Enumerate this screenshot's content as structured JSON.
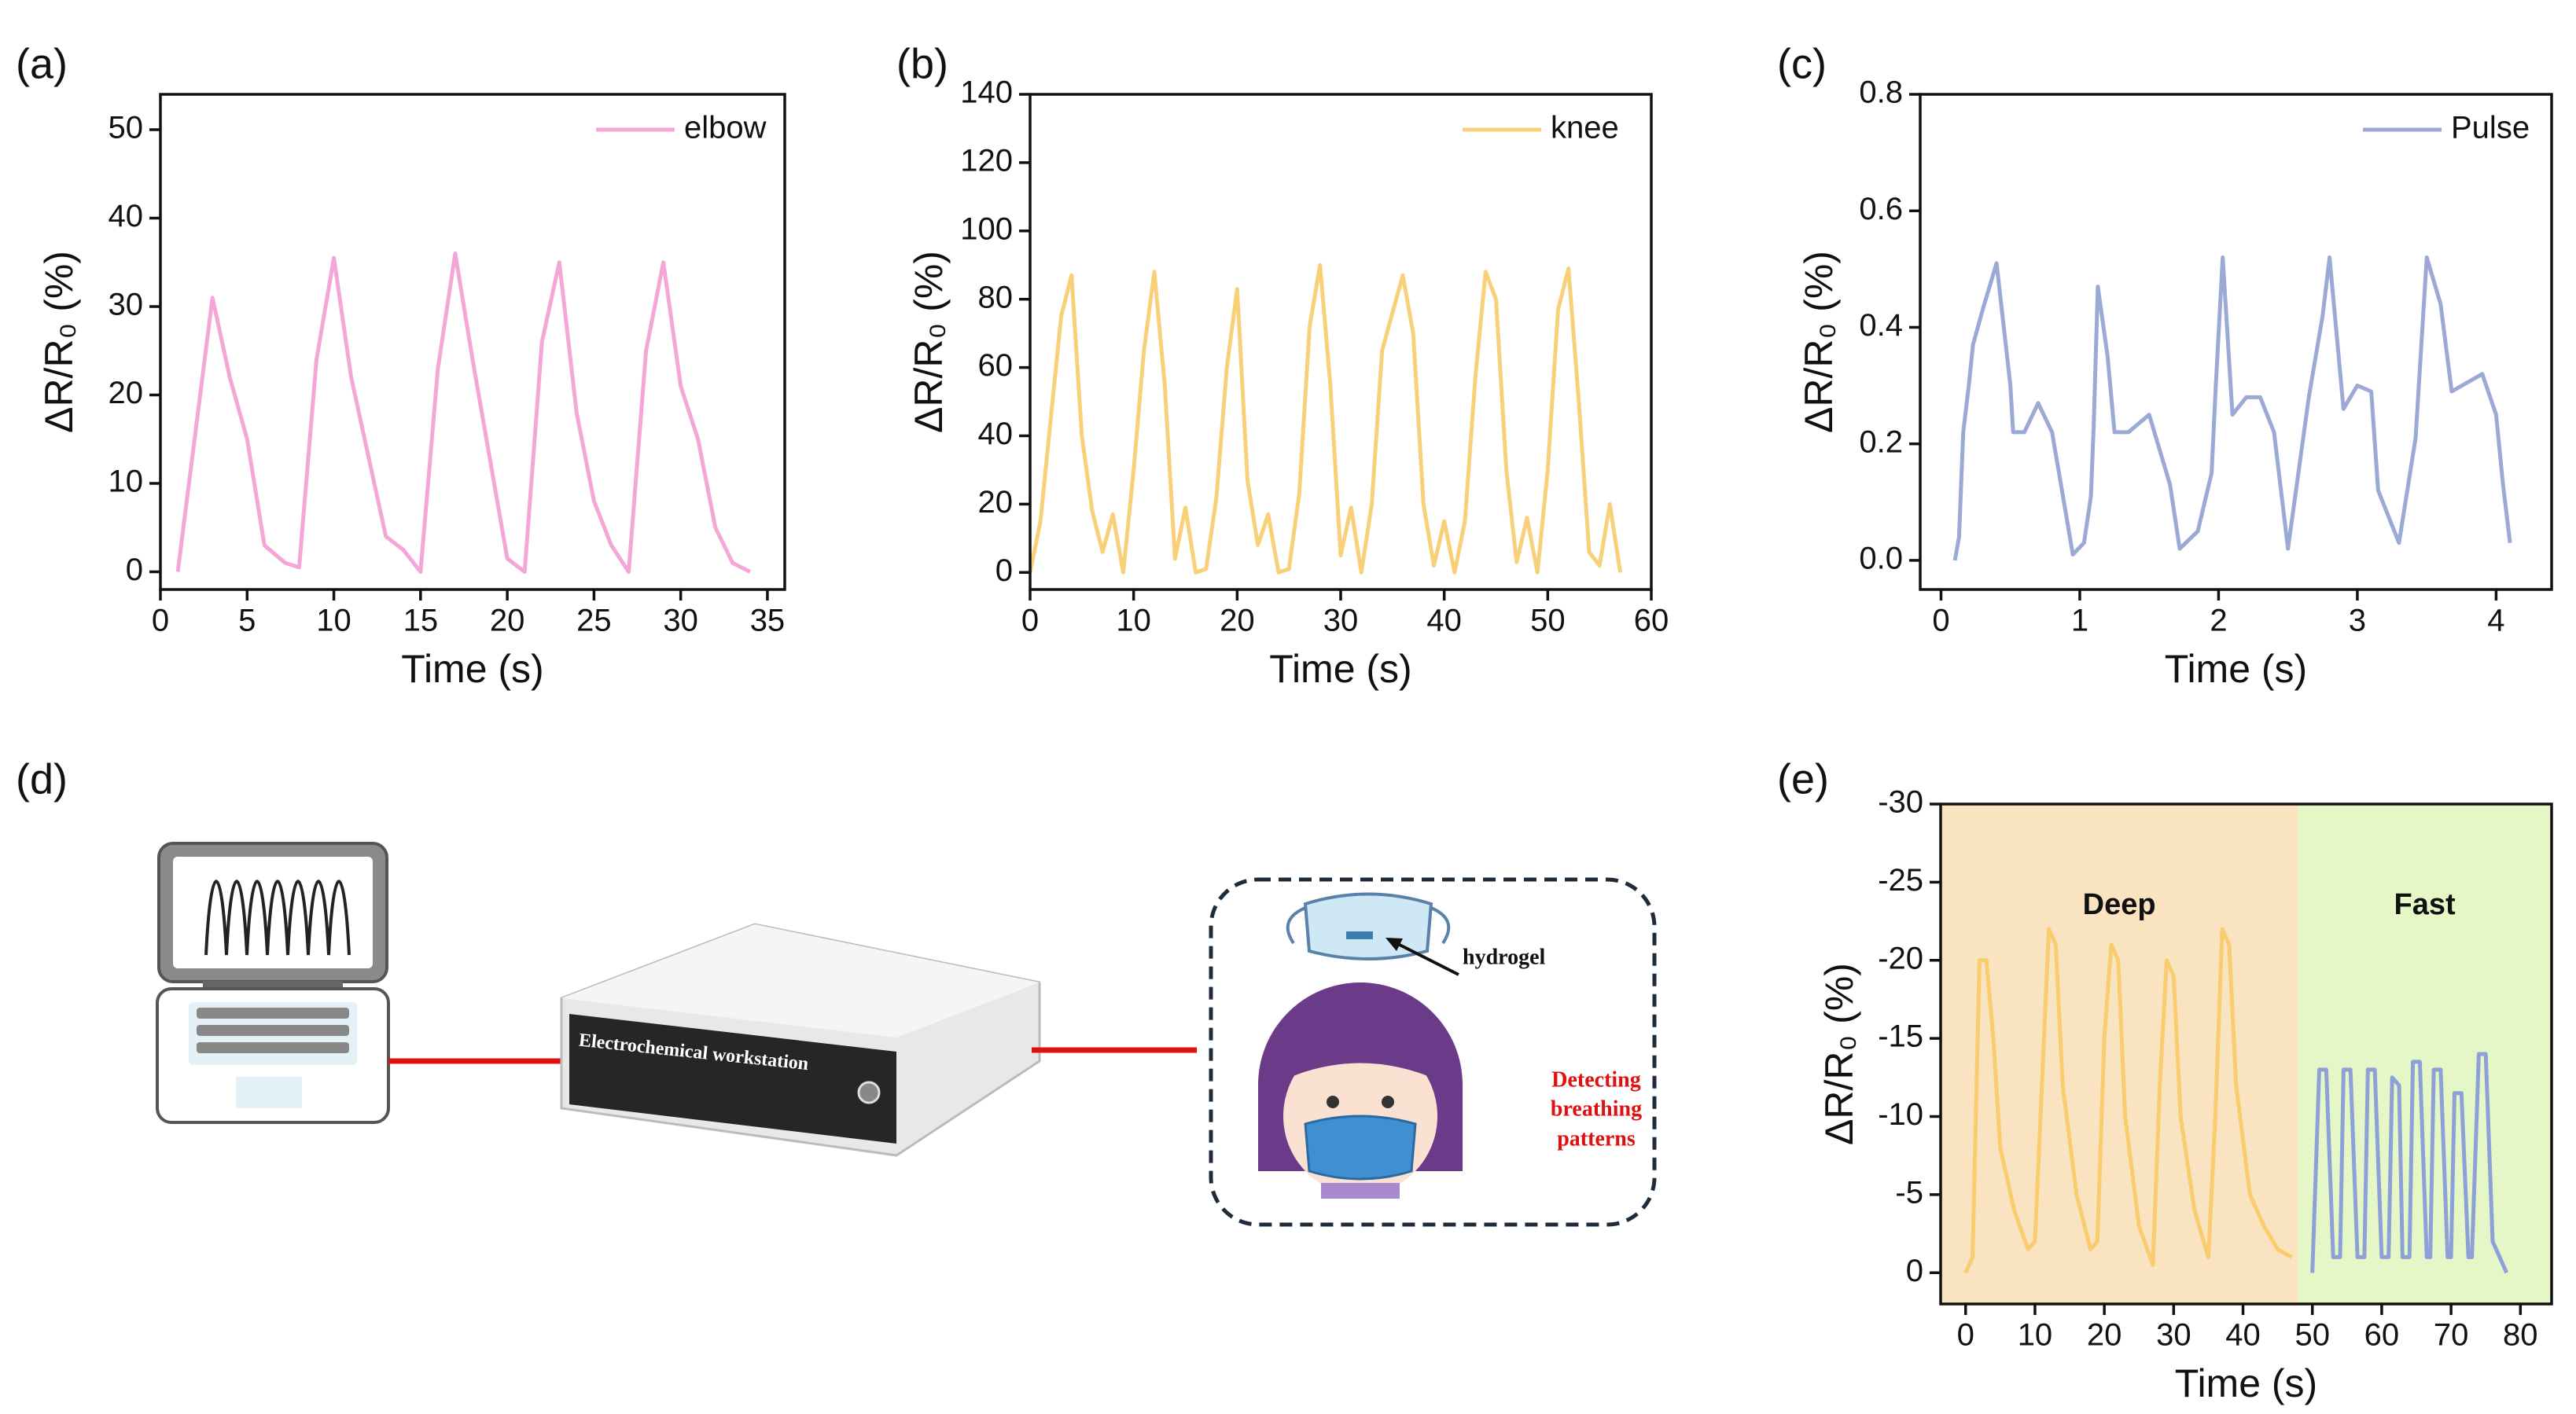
{
  "chart_data": [
    {
      "type": "line",
      "panel": "(a)",
      "xlabel": "Time (s)",
      "ylabel": "ΔR/R₀ (%)",
      "x": [
        1,
        3,
        4,
        5,
        6,
        7.2,
        8,
        9,
        10,
        11,
        13,
        14,
        15,
        16,
        17,
        18,
        20,
        21,
        22,
        23,
        24,
        25,
        26,
        27,
        28,
        29,
        30,
        31,
        32,
        33,
        34
      ],
      "series": [
        {
          "name": "elbow",
          "color": "#f4a6d7",
          "values": [
            0,
            31,
            22,
            15,
            3,
            1,
            0.5,
            24,
            35.5,
            22,
            4,
            2.5,
            0,
            23,
            36,
            24,
            1.5,
            0,
            26,
            35,
            18,
            8,
            3,
            0,
            25,
            35,
            21,
            15,
            5,
            1,
            0
          ]
        }
      ],
      "xlim": [
        0,
        36
      ],
      "ylim": [
        -2,
        54
      ],
      "xticks": [
        0,
        5,
        10,
        15,
        20,
        25,
        30,
        35
      ],
      "yticks": [
        0,
        10,
        20,
        30,
        40,
        50
      ],
      "legend": "upper right"
    },
    {
      "type": "line",
      "panel": "(b)",
      "xlabel": "Time (s)",
      "ylabel": "ΔR/R₀ (%)",
      "x": [
        0,
        1,
        2,
        3,
        4,
        5,
        6,
        7,
        8,
        9,
        10,
        11,
        12,
        13,
        14,
        15,
        16,
        17,
        18,
        19,
        20,
        21,
        22,
        23,
        24,
        25,
        26,
        27,
        28,
        29,
        30,
        31,
        32,
        33,
        34,
        35,
        36,
        37,
        38,
        39,
        40,
        41,
        42,
        43,
        44,
        45,
        46,
        47,
        48,
        49,
        50,
        51,
        52,
        53,
        54,
        55,
        56,
        57
      ],
      "series": [
        {
          "name": "knee",
          "color": "#f9d07a",
          "values": [
            0,
            15,
            45,
            75,
            87,
            40,
            18,
            6,
            17,
            0,
            30,
            65,
            88,
            55,
            4,
            19,
            0,
            1,
            22,
            60,
            83,
            27,
            8,
            17,
            0,
            1,
            23,
            72,
            90,
            55,
            5,
            19,
            0,
            20,
            65,
            76,
            87,
            70,
            20,
            2,
            15,
            0,
            15,
            57,
            88,
            80,
            30,
            3,
            16,
            0,
            30,
            77,
            89,
            50,
            6,
            2,
            20,
            0
          ]
        }
      ],
      "xlim": [
        0,
        60
      ],
      "ylim": [
        -5,
        140
      ],
      "xticks": [
        0,
        10,
        20,
        30,
        40,
        50,
        60
      ],
      "yticks": [
        0,
        20,
        40,
        60,
        80,
        100,
        120,
        140
      ],
      "legend": "upper right"
    },
    {
      "type": "line",
      "panel": "(c)",
      "xlabel": "Time (s)",
      "ylabel": "ΔR/R₀ (%)",
      "x": [
        0.1,
        0.13,
        0.16,
        0.2,
        0.23,
        0.3,
        0.4,
        0.5,
        0.52,
        0.6,
        0.7,
        0.8,
        0.9,
        0.95,
        1.03,
        1.08,
        1.1,
        1.13,
        1.2,
        1.25,
        1.35,
        1.5,
        1.65,
        1.72,
        1.85,
        1.95,
        1.98,
        2.03,
        2.1,
        2.2,
        2.3,
        2.4,
        2.5,
        2.65,
        2.75,
        2.8,
        2.9,
        3.0,
        3.1,
        3.15,
        3.3,
        3.42,
        3.5,
        3.6,
        3.68,
        3.9,
        4.0,
        4.05,
        4.1
      ],
      "series": [
        {
          "name": "Pulse",
          "color": "#9aa9d5",
          "values": [
            0,
            0.04,
            0.22,
            0.3,
            0.37,
            0.43,
            0.51,
            0.3,
            0.22,
            0.22,
            0.27,
            0.22,
            0.08,
            0.01,
            0.03,
            0.11,
            0.23,
            0.47,
            0.35,
            0.22,
            0.22,
            0.25,
            0.13,
            0.02,
            0.05,
            0.15,
            0.3,
            0.52,
            0.25,
            0.28,
            0.28,
            0.22,
            0.02,
            0.28,
            0.42,
            0.52,
            0.26,
            0.3,
            0.29,
            0.12,
            0.03,
            0.21,
            0.52,
            0.44,
            0.29,
            0.32,
            0.25,
            0.13,
            0.03
          ]
        }
      ],
      "xlim": [
        -0.15,
        4.4
      ],
      "ylim": [
        -0.05,
        0.8
      ],
      "xticks": [
        0,
        1,
        2,
        3,
        4
      ],
      "yticks": [
        {
          "value": 0,
          "label": "0.0"
        },
        0.2,
        0.4,
        0.6,
        0.8
      ],
      "legend": "upper right"
    },
    {
      "type": "line",
      "panel": "(e)",
      "xlabel": "Time (s)",
      "ylabel": "ΔR/R₀ (%)",
      "series": [
        {
          "name": "Deep",
          "color": "#f9cc6e",
          "shade": [
            -3.6,
            47.9
          ],
          "shade_color": "#f9e3c0",
          "x": [
            0,
            1,
            2,
            3,
            4,
            5,
            7,
            9,
            10,
            11,
            12,
            13,
            14,
            16,
            18,
            19,
            20,
            21,
            22,
            23,
            25,
            27,
            28,
            29,
            30,
            31,
            33,
            35,
            36,
            37,
            38,
            39,
            41,
            43,
            45,
            47
          ],
          "values": [
            0,
            -1,
            -20,
            -20,
            -15,
            -8,
            -4,
            -1.5,
            -2,
            -12,
            -22,
            -21,
            -12,
            -5,
            -1.5,
            -2,
            -15,
            -21,
            -20,
            -10,
            -3,
            -0.5,
            -12,
            -20,
            -19,
            -10,
            -4,
            -1,
            -10,
            -22,
            -21,
            -12,
            -5,
            -3,
            -1.5,
            -1
          ]
        },
        {
          "name": "Fast",
          "color": "#8ea0d8",
          "shade": [
            47.9,
            84.5
          ],
          "shade_color": "#e5f7c6",
          "x": [
            50,
            51,
            52,
            53,
            54,
            54.5,
            55.5,
            56.5,
            57.5,
            58,
            59,
            60,
            61,
            61.5,
            62.5,
            63,
            64,
            64.5,
            65.5,
            66.5,
            67,
            67.5,
            68.5,
            69.5,
            70,
            70.5,
            71.5,
            72.5,
            73,
            74,
            75,
            76,
            77,
            78
          ],
          "values": [
            0,
            -13,
            -13,
            -1,
            -1,
            -13,
            -13,
            -1,
            -1,
            -13,
            -13,
            -1,
            -1,
            -12.5,
            -12,
            -1,
            -1,
            -13.5,
            -13.5,
            -1,
            -1,
            -13,
            -13,
            -1,
            -1,
            -11.5,
            -11.5,
            -1,
            -1,
            -14,
            -14,
            -2,
            -1,
            0
          ]
        }
      ],
      "xlim": [
        -3.6,
        84.5
      ],
      "ylim": [
        2,
        -30
      ],
      "xticks": [
        0,
        10,
        20,
        30,
        40,
        50,
        60,
        70,
        80
      ],
      "yticks": [
        0,
        -5,
        -10,
        -15,
        -20,
        -25,
        -30
      ]
    }
  ],
  "diagram": {
    "panel": "(d)",
    "device_label": "Electrochemical workstation",
    "sensor_label": "hydrogel",
    "annotation": [
      "Detecting",
      "breathing",
      "patterns"
    ]
  }
}
